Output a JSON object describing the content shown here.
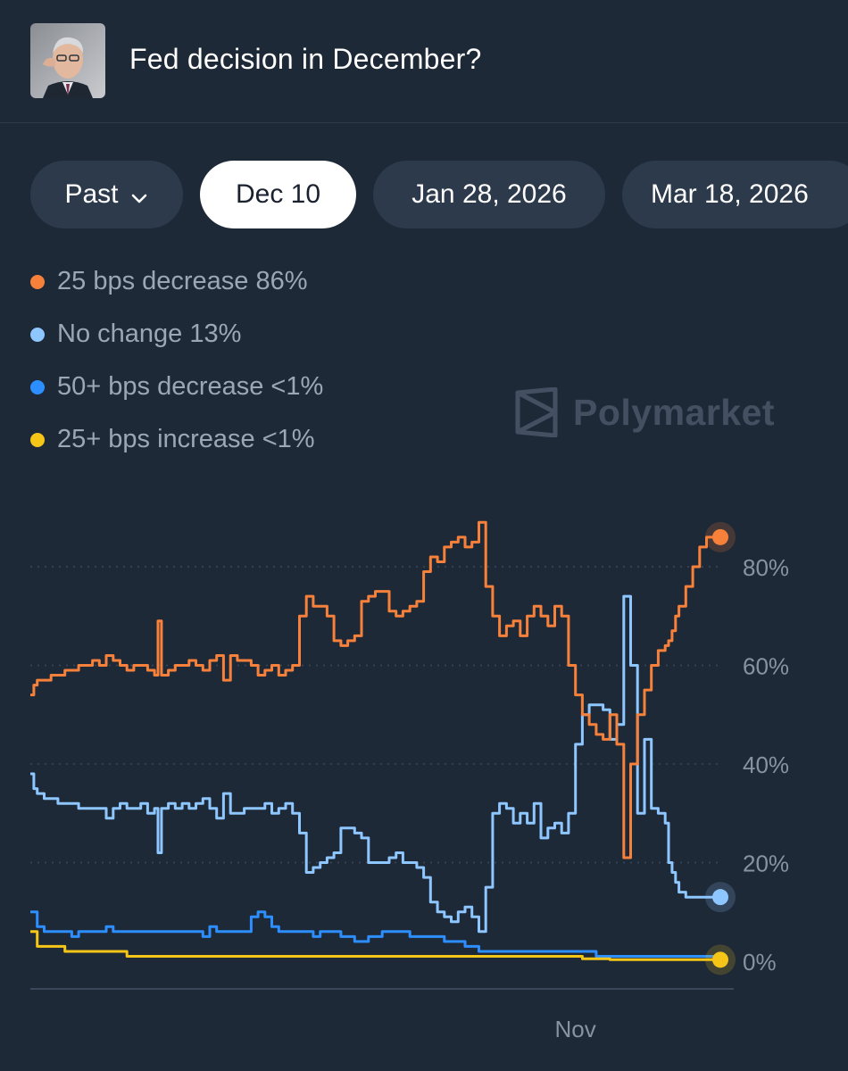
{
  "header": {
    "title": "Fed decision in December?"
  },
  "tabs": [
    {
      "label": "Past",
      "active": false,
      "has_dropdown": true
    },
    {
      "label": "Dec 10",
      "active": true
    },
    {
      "label": "Jan 28, 2026",
      "active": false
    },
    {
      "label": "Mar 18, 2026",
      "active": false
    }
  ],
  "legend": [
    {
      "label": "25 bps decrease 86%",
      "color": "#f7813a"
    },
    {
      "label": "No change 13%",
      "color": "#8ec6ff"
    },
    {
      "label": "50+ bps decrease <1%",
      "color": "#2d8fff"
    },
    {
      "label": "25+ bps increase <1%",
      "color": "#f5c518"
    }
  ],
  "watermark": "Polymarket",
  "chart_data": {
    "type": "line",
    "xlabel": "",
    "ylabel": "",
    "x_ticks": [
      "Nov"
    ],
    "x_range": [
      0,
      100
    ],
    "x_tick_positions": [
      79
    ],
    "y_ticks": [
      "0%",
      "20%",
      "40%",
      "60%",
      "80%"
    ],
    "y_tick_values": [
      0,
      20,
      40,
      60,
      80
    ],
    "ylim": [
      0,
      100
    ],
    "grid": "dotted horizontal",
    "series": [
      {
        "name": "25 bps decrease",
        "color": "#f7813a",
        "x": [
          0,
          0.5,
          1,
          2,
          3,
          4,
          5,
          6,
          7,
          8,
          9,
          10,
          11,
          12,
          13,
          14,
          15,
          16,
          17,
          18,
          18.5,
          19,
          20,
          21,
          22,
          23,
          24,
          25,
          26,
          27,
          28,
          29,
          30,
          31,
          32,
          33,
          34,
          35,
          36,
          37,
          38,
          39,
          40,
          41,
          42,
          43,
          44,
          45,
          46,
          47,
          48,
          49,
          50,
          51,
          52,
          53,
          54,
          55,
          56,
          57,
          58,
          59,
          60,
          61,
          62,
          63,
          64,
          65,
          66,
          67,
          68,
          69,
          70,
          71,
          72,
          73,
          74,
          75,
          76,
          77,
          78,
          79,
          80,
          81,
          82,
          83,
          84,
          85,
          86,
          87,
          88,
          89,
          90,
          91,
          92,
          92.5,
          93,
          93.5,
          94,
          95,
          96,
          97,
          98,
          99,
          100
        ],
        "values": [
          54,
          56,
          57,
          57,
          58,
          58,
          59,
          59,
          60,
          60,
          61,
          60,
          62,
          61,
          60,
          59,
          60,
          60,
          59,
          58,
          69,
          58,
          59,
          60,
          60,
          61,
          60,
          59,
          61,
          62,
          57,
          62,
          61,
          61,
          60,
          58,
          59,
          60,
          58,
          59,
          60,
          70,
          74,
          72,
          72,
          70,
          65,
          64,
          65,
          66,
          73,
          74,
          75,
          75,
          71,
          70,
          71,
          72,
          73,
          79,
          82,
          81,
          84,
          85,
          86,
          84,
          85,
          89,
          76,
          70,
          66,
          68,
          69,
          66,
          70,
          72,
          70,
          68,
          72,
          70,
          60,
          54,
          50,
          48,
          46,
          45,
          50,
          44,
          21,
          40,
          50,
          55,
          60,
          63,
          64,
          65,
          67,
          70,
          72,
          76,
          80,
          84,
          86,
          86,
          86
        ]
      },
      {
        "name": "No change",
        "color": "#8ec6ff",
        "x": [
          0,
          0.5,
          1,
          2,
          3,
          4,
          5,
          6,
          7,
          8,
          9,
          10,
          11,
          12,
          13,
          14,
          15,
          16,
          17,
          18,
          18.5,
          19,
          20,
          21,
          22,
          23,
          24,
          25,
          26,
          27,
          28,
          29,
          30,
          31,
          32,
          33,
          34,
          35,
          36,
          37,
          38,
          39,
          40,
          41,
          42,
          43,
          44,
          45,
          46,
          47,
          48,
          49,
          50,
          51,
          52,
          53,
          54,
          55,
          56,
          57,
          58,
          59,
          60,
          61,
          62,
          63,
          64,
          65,
          66,
          67,
          68,
          69,
          70,
          71,
          72,
          73,
          74,
          75,
          76,
          77,
          78,
          79,
          80,
          81,
          82,
          83,
          84,
          85,
          86,
          87,
          88,
          89,
          90,
          91,
          92,
          92.5,
          93,
          93.5,
          94,
          95,
          96,
          97,
          98,
          99,
          100
        ],
        "values": [
          38,
          35,
          34,
          33,
          33,
          32,
          32,
          32,
          31,
          31,
          31,
          31,
          29,
          31,
          32,
          31,
          31,
          32,
          30,
          31,
          22,
          31,
          32,
          31,
          32,
          31,
          32,
          33,
          31,
          29,
          34,
          30,
          30,
          31,
          31,
          31,
          32,
          30,
          31,
          32,
          30,
          26,
          18,
          19,
          20,
          21,
          22,
          27,
          27,
          26,
          25,
          20,
          20,
          20,
          21,
          22,
          20,
          20,
          19,
          17,
          12,
          10,
          9,
          8,
          10,
          11,
          9,
          6,
          15,
          30,
          32,
          31,
          28,
          30,
          28,
          32,
          25,
          27,
          28,
          26,
          30,
          44,
          50,
          52,
          52,
          51,
          45,
          48,
          74,
          60,
          30,
          45,
          31,
          30,
          28,
          20,
          18,
          16,
          14,
          13,
          13,
          13,
          13,
          13,
          13
        ]
      },
      {
        "name": "50+ bps decrease",
        "color": "#2d8fff",
        "x": [
          0,
          1,
          2,
          3,
          4,
          5,
          6,
          7,
          8,
          9,
          10,
          11,
          12,
          13,
          14,
          15,
          16,
          17,
          18,
          19,
          20,
          21,
          22,
          23,
          24,
          25,
          26,
          27,
          28,
          29,
          30,
          31,
          32,
          33,
          34,
          35,
          36,
          37,
          38,
          39,
          40,
          41,
          42,
          43,
          44,
          45,
          46,
          47,
          48,
          49,
          50,
          51,
          52,
          53,
          54,
          55,
          56,
          57,
          58,
          59,
          60,
          61,
          62,
          63,
          64,
          65,
          66,
          67,
          68,
          69,
          70,
          71,
          72,
          73,
          74,
          75,
          76,
          77,
          78,
          79,
          80,
          81,
          82,
          83,
          84,
          85,
          86,
          87,
          88,
          89,
          90,
          91,
          92,
          93,
          94,
          95,
          96,
          97,
          98,
          99,
          100
        ],
        "values": [
          10,
          7,
          6,
          6,
          6,
          6,
          5,
          6,
          6,
          6,
          6,
          7,
          6,
          6,
          6,
          6,
          6,
          6,
          6,
          6,
          6,
          6,
          6,
          6,
          6,
          5,
          7,
          6,
          6,
          6,
          6,
          6,
          9,
          10,
          9,
          7,
          6,
          6,
          6,
          6,
          6,
          5,
          6,
          6,
          6,
          5,
          5,
          4,
          4,
          5,
          5,
          6,
          6,
          6,
          6,
          5,
          5,
          5,
          5,
          5,
          4,
          4,
          4,
          3,
          3,
          2,
          2,
          2,
          2,
          2,
          2,
          2,
          2,
          2,
          2,
          2,
          2,
          2,
          2,
          2,
          2,
          2,
          1,
          1,
          1,
          1,
          1,
          1,
          1,
          1,
          1,
          1,
          1,
          1,
          1,
          1,
          1,
          1,
          1,
          1,
          1
        ]
      },
      {
        "name": "25+ bps increase",
        "color": "#f5c518",
        "x": [
          0,
          1,
          2,
          3,
          4,
          5,
          6,
          7,
          8,
          9,
          10,
          12,
          14,
          16,
          18,
          20,
          22,
          24,
          26,
          28,
          30,
          32,
          34,
          36,
          38,
          40,
          44,
          48,
          52,
          56,
          60,
          64,
          68,
          72,
          76,
          80,
          84,
          88,
          92,
          96,
          100
        ],
        "values": [
          6,
          3,
          3,
          3,
          3,
          2,
          2,
          2,
          2,
          2,
          2,
          2,
          1,
          1,
          1,
          1,
          1,
          1,
          1,
          1,
          1,
          1,
          1,
          1,
          1,
          1,
          1,
          1,
          1,
          1,
          1,
          1,
          1,
          1,
          1,
          0.5,
          0.3,
          0.3,
          0.3,
          0.3,
          0.3
        ]
      }
    ]
  }
}
